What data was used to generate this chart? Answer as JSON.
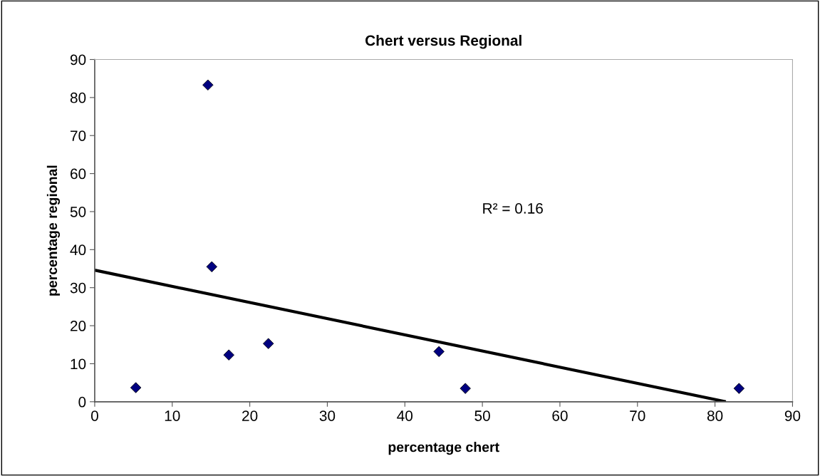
{
  "chart_data": {
    "type": "scatter",
    "title": "Chert versus Regional",
    "xlabel": "percentage chert",
    "ylabel": "percentage regional",
    "xlim": [
      0,
      90
    ],
    "xticks": [
      0,
      10,
      20,
      30,
      40,
      50,
      60,
      70,
      80,
      90
    ],
    "ylim": [
      0,
      90
    ],
    "yticks": [
      0,
      10,
      20,
      30,
      40,
      50,
      60,
      70,
      80,
      90
    ],
    "grid": false,
    "series": [
      {
        "marker": "diamond",
        "color": "#000080",
        "x": [
          5.3,
          14.6,
          15.1,
          17.3,
          22.4,
          44.4,
          47.8,
          83.1
        ],
        "values": [
          3.7,
          83.3,
          35.5,
          12.3,
          15.3,
          13.2,
          3.5,
          3.5
        ]
      },
      {
        "type": "line",
        "color": "#000000",
        "x": [
          0,
          81.4
        ],
        "values": [
          34.6,
          0
        ]
      }
    ],
    "annotations": [
      "R² = 0.16"
    ]
  }
}
